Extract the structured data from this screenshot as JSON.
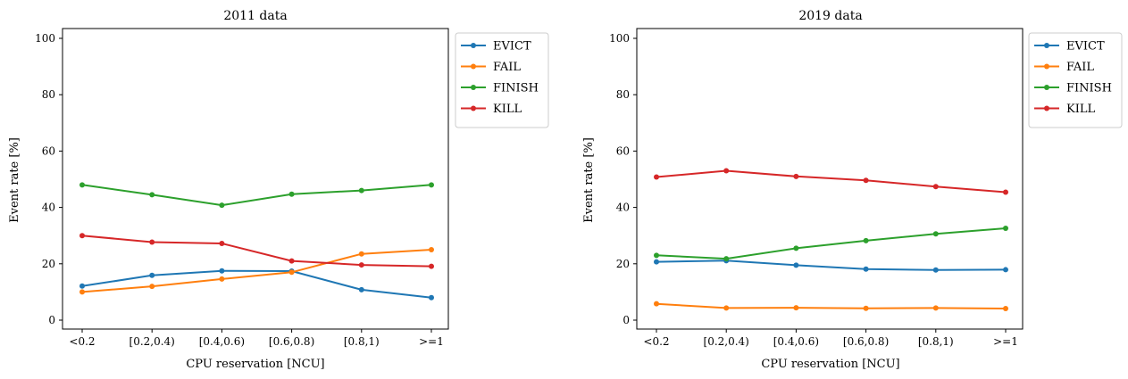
{
  "colors": {
    "EVICT": "#1f77b4",
    "FAIL": "#ff7f0e",
    "FINISH": "#2ca02c",
    "KILL": "#d62728"
  },
  "chart_data": [
    {
      "type": "line",
      "title": "2011 data",
      "xlabel": "CPU reservation [NCU]",
      "ylabel": "Event rate [%]",
      "categories": [
        "<0.2",
        "[0.2,0.4)",
        "[0.4,0.6)",
        "[0.6,0.8)",
        "[0.8,1)",
        ">=1"
      ],
      "ylim": [
        0,
        100
      ],
      "yticks": [
        0,
        20,
        40,
        60,
        80,
        100
      ],
      "grid": false,
      "legend": "outside-upper-right",
      "series": [
        {
          "name": "EVICT",
          "values": [
            12.1,
            15.9,
            17.5,
            17.4,
            10.8,
            8.0
          ]
        },
        {
          "name": "FAIL",
          "values": [
            10.0,
            12.0,
            14.6,
            17.0,
            23.5,
            25.0
          ]
        },
        {
          "name": "FINISH",
          "values": [
            48.0,
            44.5,
            40.8,
            44.7,
            46.0,
            48.0
          ]
        },
        {
          "name": "KILL",
          "values": [
            30.0,
            27.7,
            27.2,
            21.0,
            19.6,
            19.1
          ]
        }
      ]
    },
    {
      "type": "line",
      "title": "2019 data",
      "xlabel": "CPU reservation [NCU]",
      "ylabel": "Event rate [%]",
      "categories": [
        "<0.2",
        "[0.2,0.4)",
        "[0.4,0.6)",
        "[0.6,0.8)",
        "[0.8,1)",
        ">=1"
      ],
      "ylim": [
        0,
        100
      ],
      "yticks": [
        0,
        20,
        40,
        60,
        80,
        100
      ],
      "grid": false,
      "legend": "outside-upper-right",
      "series": [
        {
          "name": "EVICT",
          "values": [
            20.7,
            21.1,
            19.5,
            18.1,
            17.8,
            17.9
          ]
        },
        {
          "name": "FAIL",
          "values": [
            5.8,
            4.3,
            4.4,
            4.2,
            4.3,
            4.1
          ]
        },
        {
          "name": "FINISH",
          "values": [
            23.0,
            21.8,
            25.5,
            28.2,
            30.6,
            32.6
          ]
        },
        {
          "name": "KILL",
          "values": [
            50.8,
            53.0,
            51.0,
            49.6,
            47.4,
            45.4
          ]
        }
      ]
    }
  ]
}
